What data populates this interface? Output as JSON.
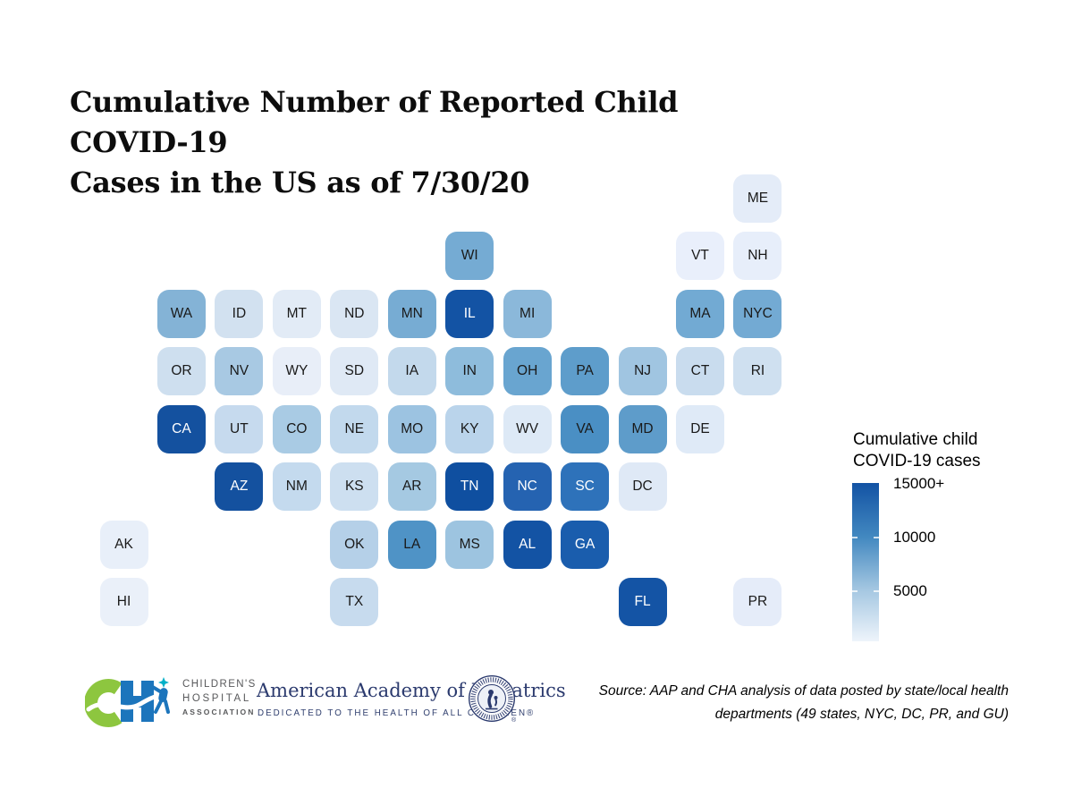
{
  "title": {
    "line1": "Cumulative Number of Reported Child COVID-19",
    "line2": "Cases in the US as of 7/30/20"
  },
  "legend": {
    "title_line1": "Cumulative child",
    "title_line2": "COVID-19 cases",
    "ticks": [
      "15000+",
      "10000",
      "5000"
    ],
    "low_color": "#eef4fb",
    "high_color": "#1353a4"
  },
  "footer": {
    "cha": {
      "line1": "CHILDREN'S",
      "line2": "HOSPITAL",
      "line3": "ASSOCIATION",
      "brand_green": "#8dc63f",
      "brand_blue": "#1c75bc",
      "brand_teal": "#00b0c8"
    },
    "aap": {
      "name": "American Academy of Pediatrics",
      "tagline": "DEDICATED TO THE HEALTH OF ALL CHILDREN®",
      "navy": "#2b3a6e"
    },
    "source_line1": "Source: AAP and CHA analysis of data posted by state/local health",
    "source_line2": "departments (49 states, NYC, DC, PR, and GU)"
  },
  "chart_data": {
    "type": "heatmap",
    "subtype": "us-state-tile-grid-choropleth",
    "title": "Cumulative Number of Reported Child COVID-19 Cases in the US as of 7/30/20",
    "legend_title": "Cumulative child COVID-19 cases",
    "scale": {
      "min": 0,
      "max": 15000,
      "max_label": "15000+",
      "tick_values": [
        5000,
        10000,
        15000
      ],
      "low_color": "#eef4fb",
      "high_color": "#1353a4"
    },
    "note": "cases_est values estimated from color scale; only colors are shown in the figure",
    "states": [
      {
        "state": "ME",
        "col": 11,
        "row": 0,
        "color": "#e4ecf8",
        "white_text": false,
        "cases_est": 800
      },
      {
        "state": "WI",
        "col": 6,
        "row": 1,
        "color": "#75abd3",
        "white_text": false,
        "cases_est": 7700
      },
      {
        "state": "VT",
        "col": 10,
        "row": 1,
        "color": "#e9effb",
        "white_text": false,
        "cases_est": 500
      },
      {
        "state": "NH",
        "col": 11,
        "row": 1,
        "color": "#e7eefa",
        "white_text": false,
        "cases_est": 700
      },
      {
        "state": "WA",
        "col": 1,
        "row": 2,
        "color": "#84b3d6",
        "white_text": false,
        "cases_est": 6800
      },
      {
        "state": "ID",
        "col": 2,
        "row": 2,
        "color": "#d2e1f0",
        "white_text": false,
        "cases_est": 2000
      },
      {
        "state": "MT",
        "col": 3,
        "row": 2,
        "color": "#e2ebf6",
        "white_text": false,
        "cases_est": 900
      },
      {
        "state": "ND",
        "col": 4,
        "row": 2,
        "color": "#dae6f3",
        "white_text": false,
        "cases_est": 1400
      },
      {
        "state": "MN",
        "col": 5,
        "row": 2,
        "color": "#77acd3",
        "white_text": false,
        "cases_est": 7500
      },
      {
        "state": "IL",
        "col": 6,
        "row": 2,
        "color": "#1353a4",
        "white_text": true,
        "cases_est": 15000
      },
      {
        "state": "MI",
        "col": 7,
        "row": 2,
        "color": "#8bb8da",
        "white_text": false,
        "cases_est": 6400
      },
      {
        "state": "MA",
        "col": 10,
        "row": 2,
        "color": "#72aad3",
        "white_text": false,
        "cases_est": 7800
      },
      {
        "state": "NYC",
        "col": 11,
        "row": 2,
        "color": "#73aad3",
        "white_text": false,
        "cases_est": 7800
      },
      {
        "state": "OR",
        "col": 1,
        "row": 3,
        "color": "#cedfef",
        "white_text": false,
        "cases_est": 2300
      },
      {
        "state": "NV",
        "col": 2,
        "row": 3,
        "color": "#a8c9e3",
        "white_text": false,
        "cases_est": 5100
      },
      {
        "state": "WY",
        "col": 3,
        "row": 3,
        "color": "#e8eef8",
        "white_text": false,
        "cases_est": 600
      },
      {
        "state": "SD",
        "col": 4,
        "row": 3,
        "color": "#dfe9f5",
        "white_text": false,
        "cases_est": 1200
      },
      {
        "state": "IA",
        "col": 5,
        "row": 3,
        "color": "#c3d9ec",
        "white_text": false,
        "cases_est": 3100
      },
      {
        "state": "IN",
        "col": 6,
        "row": 3,
        "color": "#8ebcdc",
        "white_text": false,
        "cases_est": 6300
      },
      {
        "state": "OH",
        "col": 7,
        "row": 3,
        "color": "#69a5d0",
        "white_text": false,
        "cases_est": 8200
      },
      {
        "state": "PA",
        "col": 8,
        "row": 3,
        "color": "#5e9dcb",
        "white_text": false,
        "cases_est": 8900
      },
      {
        "state": "NJ",
        "col": 9,
        "row": 3,
        "color": "#a0c5e1",
        "white_text": false,
        "cases_est": 5400
      },
      {
        "state": "CT",
        "col": 10,
        "row": 3,
        "color": "#c9dcee",
        "white_text": false,
        "cases_est": 2700
      },
      {
        "state": "RI",
        "col": 11,
        "row": 3,
        "color": "#cfe0f0",
        "white_text": false,
        "cases_est": 2200
      },
      {
        "state": "CA",
        "col": 1,
        "row": 4,
        "color": "#14519f",
        "white_text": true,
        "cases_est": 15000
      },
      {
        "state": "UT",
        "col": 2,
        "row": 4,
        "color": "#c6daee",
        "white_text": false,
        "cases_est": 2800
      },
      {
        "state": "CO",
        "col": 3,
        "row": 4,
        "color": "#a9cbe4",
        "white_text": false,
        "cases_est": 4600
      },
      {
        "state": "NE",
        "col": 4,
        "row": 4,
        "color": "#c2d9ed",
        "white_text": false,
        "cases_est": 3100
      },
      {
        "state": "MO",
        "col": 5,
        "row": 4,
        "color": "#9cc3e1",
        "white_text": false,
        "cases_est": 5600
      },
      {
        "state": "KY",
        "col": 6,
        "row": 4,
        "color": "#bad4eb",
        "white_text": false,
        "cases_est": 3500
      },
      {
        "state": "WV",
        "col": 7,
        "row": 4,
        "color": "#dde9f6",
        "white_text": false,
        "cases_est": 1300
      },
      {
        "state": "VA",
        "col": 8,
        "row": 4,
        "color": "#4a8fc4",
        "white_text": false,
        "cases_est": 9900
      },
      {
        "state": "MD",
        "col": 9,
        "row": 4,
        "color": "#5e9cca",
        "white_text": false,
        "cases_est": 8900
      },
      {
        "state": "DE",
        "col": 10,
        "row": 4,
        "color": "#dfeaf7",
        "white_text": false,
        "cases_est": 1200
      },
      {
        "state": "AZ",
        "col": 2,
        "row": 5,
        "color": "#14519f",
        "white_text": true,
        "cases_est": 15000
      },
      {
        "state": "NM",
        "col": 3,
        "row": 5,
        "color": "#c4daee",
        "white_text": false,
        "cases_est": 2900
      },
      {
        "state": "KS",
        "col": 4,
        "row": 5,
        "color": "#cddff0",
        "white_text": false,
        "cases_est": 2400
      },
      {
        "state": "AR",
        "col": 5,
        "row": 5,
        "color": "#a5c9e2",
        "white_text": false,
        "cases_est": 5200
      },
      {
        "state": "TN",
        "col": 6,
        "row": 5,
        "color": "#0f4fa0",
        "white_text": true,
        "cases_est": 15000
      },
      {
        "state": "NC",
        "col": 7,
        "row": 5,
        "color": "#2563b1",
        "white_text": true,
        "cases_est": 13600
      },
      {
        "state": "SC",
        "col": 8,
        "row": 5,
        "color": "#2e72ba",
        "white_text": true,
        "cases_est": 12400
      },
      {
        "state": "DC",
        "col": 9,
        "row": 5,
        "color": "#dfe9f6",
        "white_text": false,
        "cases_est": 1300
      },
      {
        "state": "AK",
        "col": 0,
        "row": 6,
        "color": "#e8eff9",
        "white_text": false,
        "cases_est": 550
      },
      {
        "state": "OK",
        "col": 4,
        "row": 6,
        "color": "#b5d0e8",
        "white_text": false,
        "cases_est": 4000
      },
      {
        "state": "LA",
        "col": 5,
        "row": 6,
        "color": "#4f93c6",
        "white_text": false,
        "cases_est": 9600
      },
      {
        "state": "MS",
        "col": 6,
        "row": 6,
        "color": "#9dc4e0",
        "white_text": false,
        "cases_est": 5500
      },
      {
        "state": "AL",
        "col": 7,
        "row": 6,
        "color": "#1353a4",
        "white_text": true,
        "cases_est": 15000
      },
      {
        "state": "GA",
        "col": 8,
        "row": 6,
        "color": "#1a5dad",
        "white_text": true,
        "cases_est": 14300
      },
      {
        "state": "HI",
        "col": 0,
        "row": 7,
        "color": "#eaf0f9",
        "white_text": false,
        "cases_est": 400
      },
      {
        "state": "TX",
        "col": 4,
        "row": 7,
        "color": "#c7dbee",
        "white_text": false,
        "cases_est": 2800
      },
      {
        "state": "FL",
        "col": 9,
        "row": 7,
        "color": "#1454a5",
        "white_text": true,
        "cases_est": 15000
      },
      {
        "state": "PR",
        "col": 11,
        "row": 7,
        "color": "#e5ecf9",
        "white_text": false,
        "cases_est": 750
      }
    ]
  }
}
